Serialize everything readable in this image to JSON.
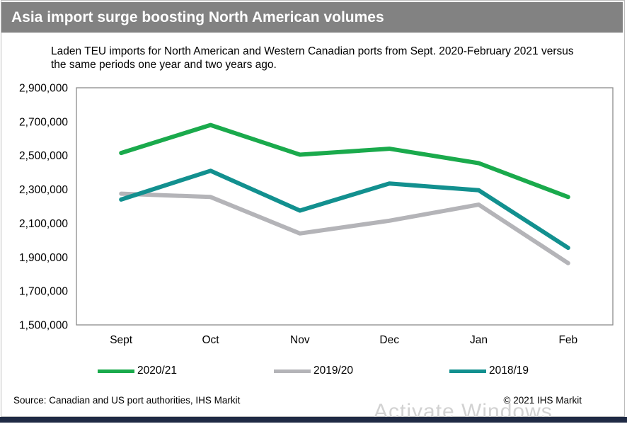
{
  "header": {
    "title": "Asia import surge boosting North American volumes"
  },
  "footer": {
    "source": "Source: Canadian and US port authorities, IHS Markit",
    "copyright": "© 2021 IHS Markit"
  },
  "watermark": "Activate Windows",
  "chart_data": {
    "type": "line",
    "title": "Asia import surge boosting North American volumes",
    "subtitle": "Laden TEU imports for North American and Western Canadian ports from Sept. 2020-February 2021 versus the same periods one year and two years ago.",
    "categories": [
      "Sept",
      "Oct",
      "Nov",
      "Dec",
      "Jan",
      "Feb"
    ],
    "ylim": [
      1500000,
      2900000
    ],
    "yticks": [
      "2,900,000",
      "2,700,000",
      "2,500,000",
      "2,300,000",
      "2,100,000",
      "1,900,000",
      "1,700,000",
      "1,500,000"
    ],
    "ytick_values": [
      2900000,
      2700000,
      2500000,
      2300000,
      2100000,
      1900000,
      1700000,
      1500000
    ],
    "grid": false,
    "legend_position": "bottom",
    "series": [
      {
        "name": "2020/21",
        "color": "#1aaa4c",
        "values": [
          2515000,
          2680000,
          2505000,
          2540000,
          2455000,
          2255000
        ]
      },
      {
        "name": "2019/20",
        "color": "#b4b4b8",
        "values": [
          2275000,
          2255000,
          2040000,
          2115000,
          2210000,
          1865000
        ]
      },
      {
        "name": "2018/19",
        "color": "#12908f",
        "values": [
          2240000,
          2410000,
          2175000,
          2335000,
          2295000,
          1955000
        ]
      }
    ]
  }
}
